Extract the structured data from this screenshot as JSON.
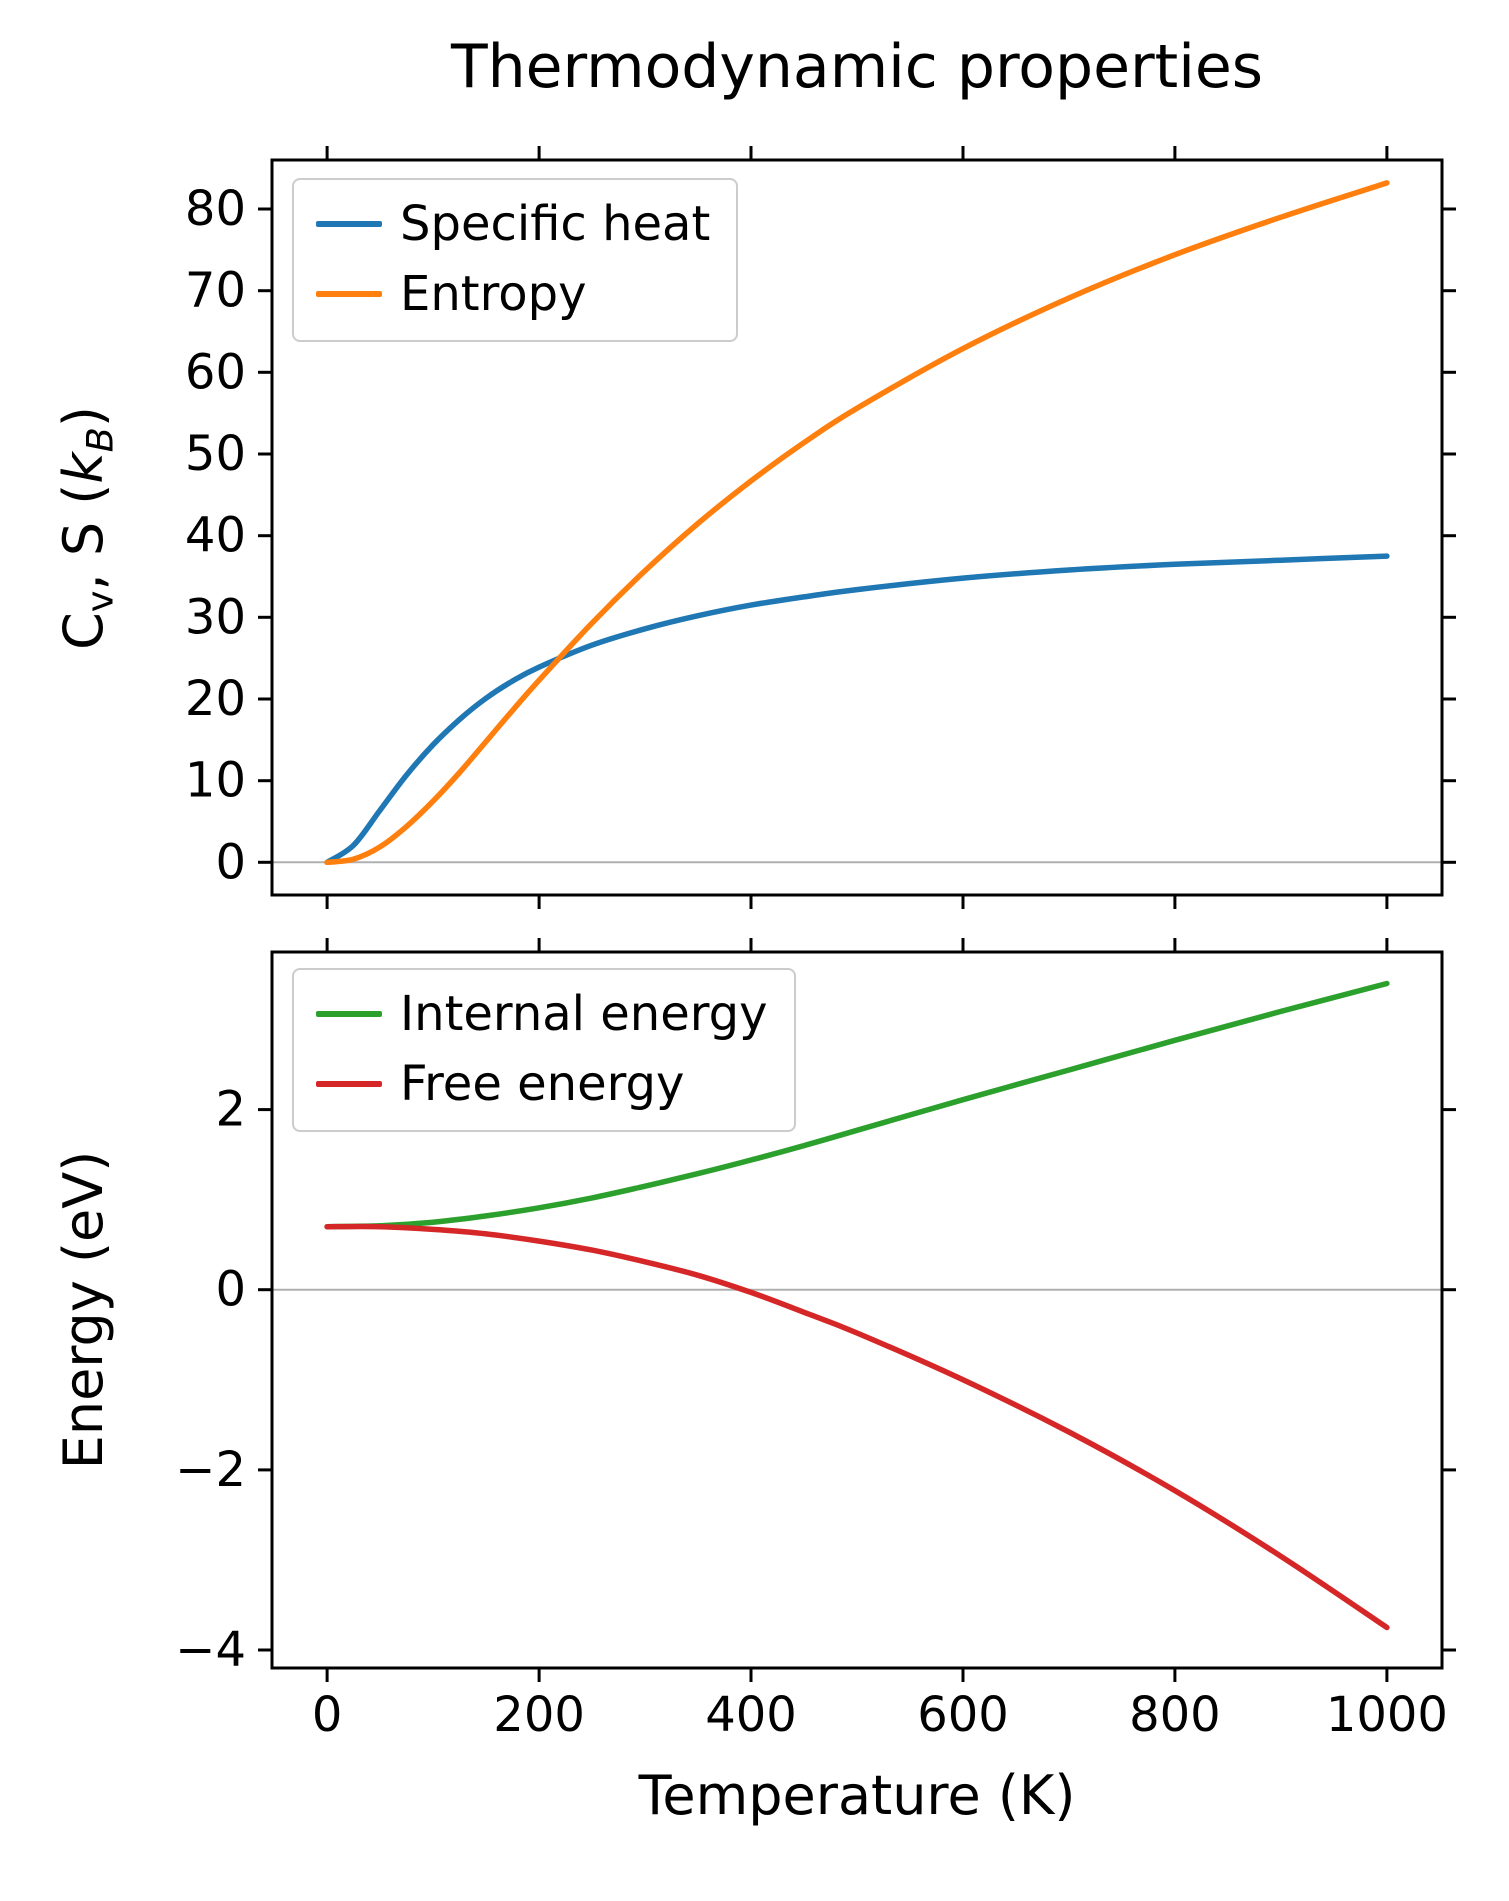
{
  "title": "Thermodynamic properties",
  "xlabel": "Temperature (K)",
  "ylabel_top": "Cv, S (kB)",
  "ylabel_top_segments": [
    {
      "text": "C"
    },
    {
      "text": "v",
      "sub": true
    },
    {
      "text": ", S ("
    },
    {
      "text": "k",
      "italic": true
    },
    {
      "text": "B",
      "sub": true,
      "italic": true
    },
    {
      "text": ")"
    }
  ],
  "ylabel_bottom": "Energy (eV)",
  "colors": {
    "specific_heat": "#1f77b4",
    "entropy": "#ff7f0e",
    "internal_energy": "#2ca02c",
    "free_energy": "#d62728",
    "zero_line": "#b0b0b0",
    "axis": "#000000",
    "legend_border": "#cccccc",
    "background": "#ffffff"
  },
  "chart_data": [
    {
      "type": "line",
      "title": "Thermodynamic properties",
      "xlabel": "",
      "ylabel": "Cv, S (kB)",
      "xlim": [
        -52,
        1052
      ],
      "ylim": [
        -4,
        86
      ],
      "xticks": [
        0,
        200,
        400,
        600,
        800,
        1000
      ],
      "show_xtick_labels": false,
      "yticks": [
        0,
        10,
        20,
        30,
        40,
        50,
        60,
        70,
        80
      ],
      "zero_line": true,
      "grid": false,
      "legend_position": "upper-left",
      "series": [
        {
          "name": "Specific heat",
          "color": "#1f77b4",
          "x": [
            0,
            25,
            50,
            75,
            100,
            125,
            150,
            175,
            200,
            250,
            300,
            350,
            400,
            450,
            500,
            600,
            700,
            800,
            900,
            1000
          ],
          "y": [
            0,
            2.1,
            6.4,
            10.7,
            14.4,
            17.5,
            20.1,
            22.2,
            23.9,
            26.6,
            28.6,
            30.2,
            31.5,
            32.5,
            33.4,
            34.8,
            35.8,
            36.5,
            37.0,
            37.5
          ]
        },
        {
          "name": "Entropy",
          "color": "#ff7f0e",
          "x": [
            0,
            25,
            50,
            75,
            100,
            125,
            150,
            175,
            200,
            250,
            300,
            350,
            400,
            450,
            500,
            600,
            700,
            800,
            900,
            1000
          ],
          "y": [
            0,
            0.4,
            1.9,
            4.4,
            7.5,
            11.0,
            14.8,
            18.6,
            22.3,
            29.3,
            35.7,
            41.5,
            46.7,
            51.4,
            55.6,
            62.9,
            69.1,
            74.4,
            79.0,
            83.2
          ]
        }
      ]
    },
    {
      "type": "line",
      "title": "",
      "xlabel": "Temperature (K)",
      "ylabel": "Energy (eV)",
      "xlim": [
        -52,
        1052
      ],
      "ylim": [
        -4.2,
        3.75
      ],
      "xticks": [
        0,
        200,
        400,
        600,
        800,
        1000
      ],
      "show_xtick_labels": true,
      "yticks": [
        -4,
        -2,
        0,
        2
      ],
      "zero_line": true,
      "grid": false,
      "legend_position": "upper-left",
      "series": [
        {
          "name": "Internal energy",
          "color": "#2ca02c",
          "x": [
            0,
            50,
            100,
            150,
            200,
            250,
            300,
            350,
            400,
            450,
            500,
            600,
            700,
            800,
            900,
            1000
          ],
          "y": [
            0.7,
            0.71,
            0.75,
            0.82,
            0.91,
            1.02,
            1.15,
            1.29,
            1.44,
            1.6,
            1.77,
            2.11,
            2.44,
            2.77,
            3.09,
            3.4
          ]
        },
        {
          "name": "Free energy",
          "color": "#d62728",
          "x": [
            0,
            50,
            100,
            150,
            200,
            250,
            300,
            350,
            400,
            450,
            500,
            600,
            700,
            800,
            900,
            1000
          ],
          "y": [
            0.7,
            0.7,
            0.67,
            0.62,
            0.54,
            0.44,
            0.31,
            0.16,
            -0.03,
            -0.25,
            -0.48,
            -1.0,
            -1.58,
            -2.23,
            -2.96,
            -3.75
          ]
        }
      ]
    }
  ]
}
